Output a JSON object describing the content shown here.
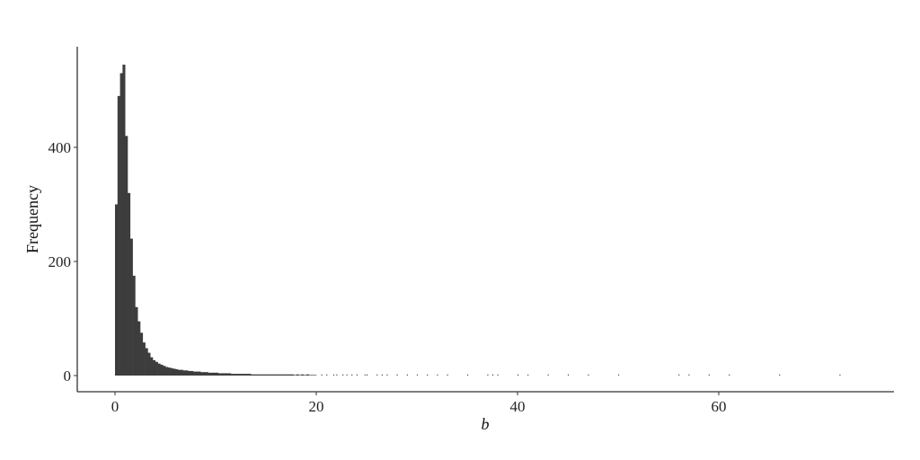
{
  "chart_data": {
    "type": "bar",
    "title": "",
    "xlabel": "b",
    "ylabel": "Frequency",
    "xlim": [
      -3.8,
      77
    ],
    "ylim": [
      -26,
      575
    ],
    "xticks": [
      0,
      20,
      40,
      60
    ],
    "yticks": [
      0,
      200,
      400
    ],
    "grid": false,
    "bar_color": "#3d3d3d",
    "bin_width": 0.25,
    "bin_start": 0,
    "counts": [
      300,
      490,
      530,
      545,
      420,
      320,
      240,
      175,
      120,
      95,
      75,
      58,
      48,
      40,
      32,
      27,
      24,
      21,
      19,
      17,
      15,
      14,
      13,
      12,
      11,
      10,
      10,
      9,
      9,
      8,
      8,
      7,
      7,
      7,
      6,
      6,
      6,
      5,
      5,
      5,
      5,
      4,
      4,
      4,
      4,
      4,
      3,
      3,
      3,
      3,
      3,
      3,
      3,
      3,
      2,
      2,
      2,
      2,
      2,
      2,
      2,
      2,
      2,
      2,
      2,
      2,
      2,
      2,
      2,
      2,
      2,
      1,
      2,
      1,
      2,
      1,
      2,
      1,
      1,
      1
    ],
    "tail_single_counts_at": [
      20.5,
      21,
      21.7,
      22,
      22.6,
      23,
      23.5,
      24,
      24.8,
      25,
      26,
      26.5,
      27,
      28,
      29,
      30,
      31,
      32,
      33,
      35,
      37,
      37.5,
      38,
      40,
      41,
      43,
      45,
      47,
      50,
      56,
      57,
      59,
      61,
      66,
      72
    ]
  }
}
